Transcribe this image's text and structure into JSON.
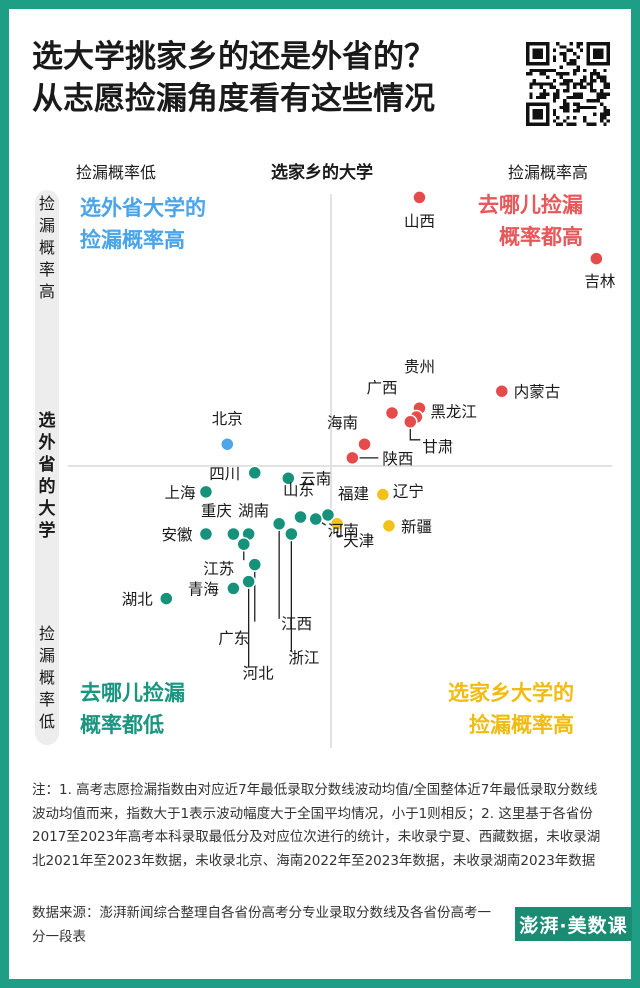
{
  "title_line1": "选大学挑家乡的还是外省的？",
  "title_line2": "从志愿捡漏角度看有这些情况",
  "qr_icon": "qr-code-icon",
  "chart_data": {
    "type": "scatter",
    "x_axis_label": "选家乡的大学",
    "x_low_label": "捡漏概率低",
    "x_high_label": "捡漏概率高",
    "y_axis_label": "选外省的大学",
    "y_high_label": "捡漏概率高",
    "y_low_label": "捡漏概率低",
    "xlim": [
      -4.5,
      4.5
    ],
    "ylim": [
      -4.2,
      4.2
    ],
    "quadrants": {
      "top_left": [
        "选外省大学的",
        "捡漏概率高"
      ],
      "top_right": [
        "去哪儿捡漏",
        "概率都高"
      ],
      "bottom_left": [
        "去哪儿捡漏",
        "概率都低"
      ],
      "bottom_right": [
        "选家乡大学的",
        "捡漏概率高"
      ]
    },
    "colors": {
      "red": "#e64b4b",
      "blue": "#4ea5e8",
      "green": "#16927a",
      "yellow": "#f2c21b",
      "red_text": "#e8585a",
      "blue_text": "#49a4ea",
      "green_text": "#1a9580",
      "yellow_text": "#f0bc14"
    },
    "points": [
      {
        "name": "山西",
        "x": 1.45,
        "y": 3.95,
        "group": "red"
      },
      {
        "name": "吉林",
        "x": 4.35,
        "y": 3.05,
        "group": "red"
      },
      {
        "name": "内蒙古",
        "x": 2.8,
        "y": 1.1,
        "group": "red"
      },
      {
        "name": "贵州",
        "x": 1.45,
        "y": 0.85,
        "group": "red"
      },
      {
        "name": "广西",
        "x": 1.0,
        "y": 0.78,
        "group": "red"
      },
      {
        "name": "黑龙江",
        "x": 1.4,
        "y": 0.72,
        "group": "red"
      },
      {
        "name": "甘肃",
        "x": 1.3,
        "y": 0.65,
        "group": "red"
      },
      {
        "name": "海南",
        "x": 0.55,
        "y": 0.32,
        "group": "red"
      },
      {
        "name": "陕西",
        "x": 0.35,
        "y": 0.12,
        "group": "red"
      },
      {
        "name": "北京",
        "x": -1.7,
        "y": 0.32,
        "group": "blue"
      },
      {
        "name": "四川",
        "x": -1.25,
        "y": -0.1,
        "group": "green"
      },
      {
        "name": "云南",
        "x": -0.7,
        "y": -0.18,
        "group": "green"
      },
      {
        "name": "上海",
        "x": -2.05,
        "y": -0.38,
        "group": "green"
      },
      {
        "name": "山东",
        "x": -0.5,
        "y": -0.75,
        "group": "green"
      },
      {
        "name": "福建",
        "x": -0.05,
        "y": -0.72,
        "group": "green"
      },
      {
        "name": "重庆",
        "x": -1.6,
        "y": -1.0,
        "group": "green"
      },
      {
        "name": "湖南",
        "x": -1.35,
        "y": -1.0,
        "group": "green"
      },
      {
        "name": "安徽",
        "x": -2.05,
        "y": -1.0,
        "group": "green"
      },
      {
        "name": "江苏",
        "x": -1.43,
        "y": -1.15,
        "group": "green"
      },
      {
        "name": "江西",
        "x": -0.85,
        "y": -0.85,
        "group": "green"
      },
      {
        "name": "浙江",
        "x": -0.65,
        "y": -1.0,
        "group": "green"
      },
      {
        "name": "河南",
        "x": -0.25,
        "y": -0.78,
        "group": "green"
      },
      {
        "name": "广东",
        "x": -1.25,
        "y": -1.45,
        "group": "green"
      },
      {
        "name": "河北",
        "x": -1.35,
        "y": -1.7,
        "group": "green"
      },
      {
        "name": "青海",
        "x": -1.6,
        "y": -1.8,
        "group": "green"
      },
      {
        "name": "湖北",
        "x": -2.7,
        "y": -1.95,
        "group": "green"
      },
      {
        "name": "辽宁",
        "x": 0.85,
        "y": -0.42,
        "group": "yellow"
      },
      {
        "name": "新疆",
        "x": 0.95,
        "y": -0.88,
        "group": "yellow"
      },
      {
        "name": "天津",
        "x": 0.1,
        "y": -0.85,
        "group": "yellow"
      }
    ]
  },
  "notes": "注：1.  高考志愿捡漏指数由对应近7年最低录取分数线波动均值/全国整体近7年最低录取分数线波动均值而来，指数大于1表示波动幅度大于全国平均情况，小于1则相反；2. 这里基于各省份2017至2023年高考本科录取最低分及对应位次进行的统计，未收录宁夏、西藏数据，未收录湖北2021年至2023年数据，未收录北京、海南2022年至2023年数据，未收录湖南2023年数据",
  "source": "数据来源：澎湃新闻综合整理自各省份高考分专业录取分数线及各省份高考一分一段表",
  "badge": "澎湃·美数课"
}
